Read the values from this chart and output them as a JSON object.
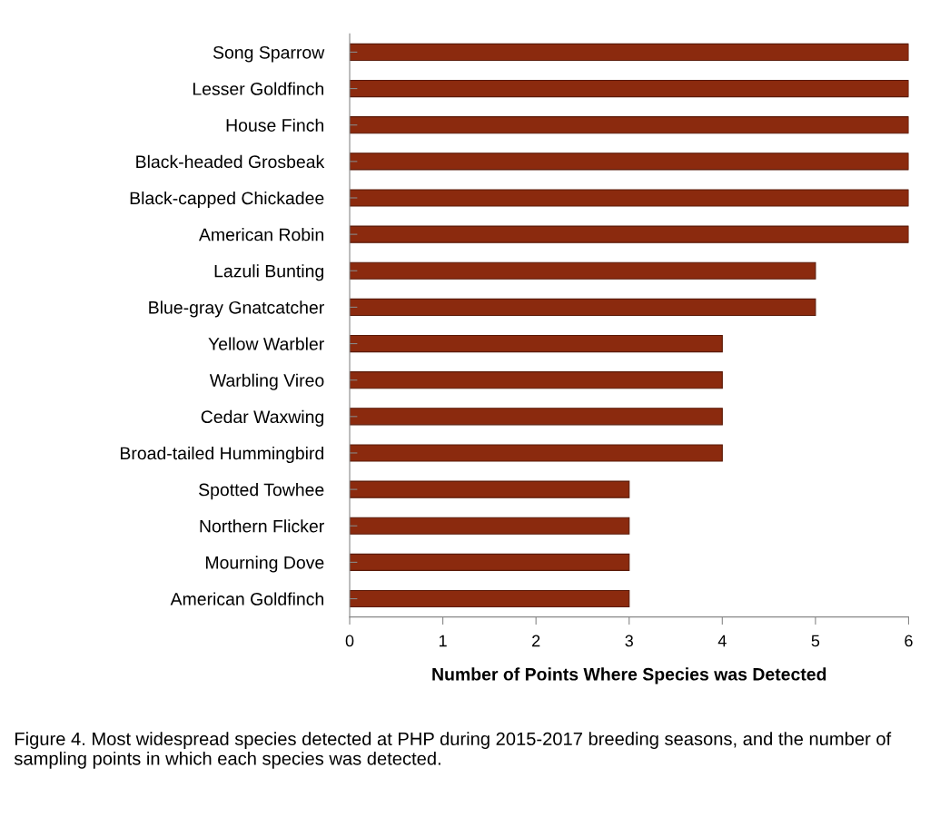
{
  "chart_data": {
    "type": "bar",
    "orientation": "horizontal",
    "categories": [
      "Song Sparrow",
      "Lesser Goldfinch",
      "House Finch",
      "Black-headed Grosbeak",
      "Black-capped Chickadee",
      "American Robin",
      "Lazuli Bunting",
      "Blue-gray Gnatcatcher",
      "Yellow Warbler",
      "Warbling Vireo",
      "Cedar Waxwing",
      "Broad-tailed Hummingbird",
      "Spotted Towhee",
      "Northern Flicker",
      "Mourning Dove",
      "American Goldfinch"
    ],
    "values": [
      6,
      6,
      6,
      6,
      6,
      6,
      5,
      5,
      4,
      4,
      4,
      4,
      3,
      3,
      3,
      3
    ],
    "color": "#8b2a0e",
    "xlim": [
      0,
      6
    ],
    "xticks": [
      0,
      1,
      2,
      3,
      4,
      5,
      6
    ],
    "xlabel": "Number of Points Where Species was Detected",
    "grid": false,
    "annotations": [
      "Figure 4. Most widespread species detected at PHP during 2015-2017 breeding seasons, and the number of sampling points in which each species was detected."
    ]
  }
}
